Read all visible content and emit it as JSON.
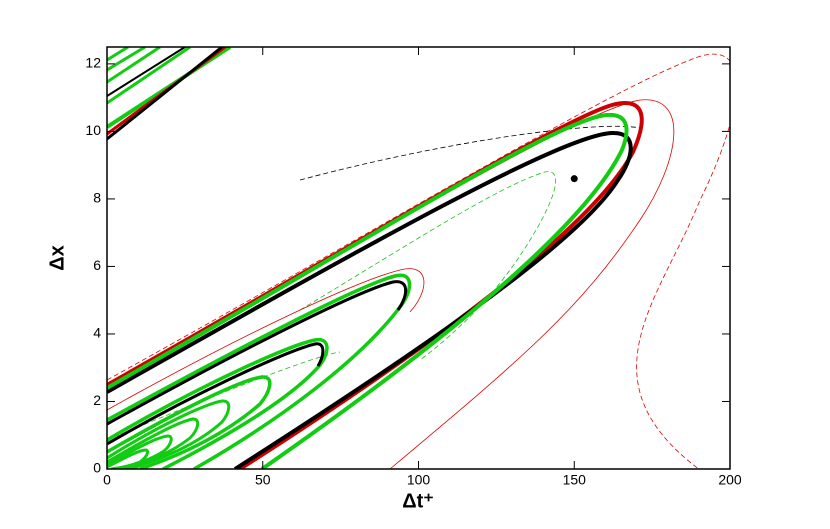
{
  "chart_data": {
    "type": "contour",
    "x_label": "Δt⁺",
    "y_label": "Δx",
    "xlim": [
      0,
      200
    ],
    "ylim": [
      0,
      12.5
    ],
    "xticks": [
      0,
      50,
      100,
      150,
      200
    ],
    "yticks": [
      0,
      2,
      4,
      6,
      8,
      10,
      12
    ],
    "points": {
      "x": [
        150
      ],
      "y": [
        8.6
      ],
      "color": "#000000"
    }
  }
}
